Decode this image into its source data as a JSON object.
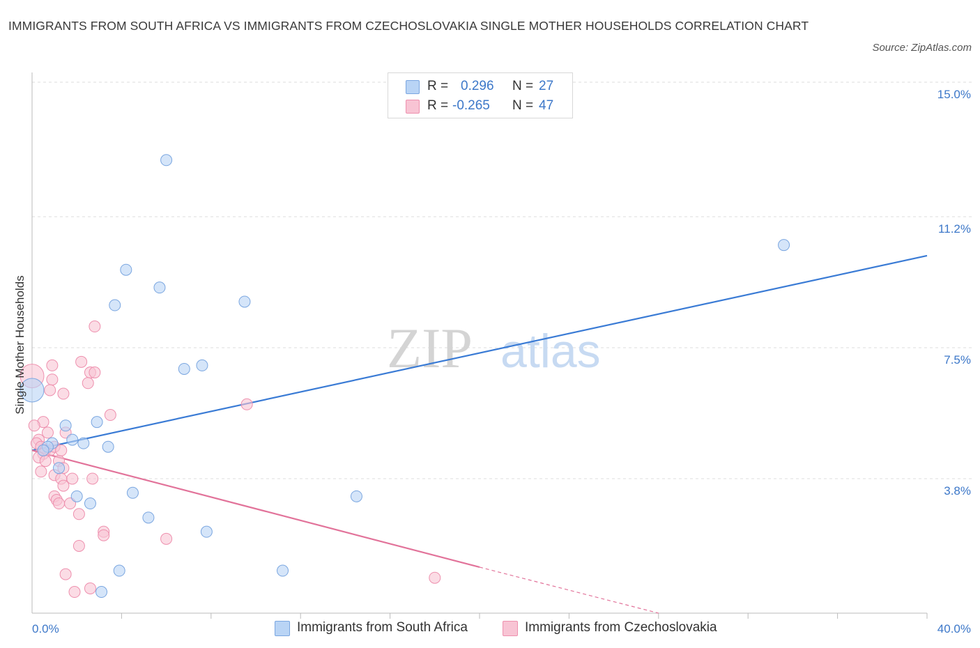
{
  "header": {
    "title": "IMMIGRANTS FROM SOUTH AFRICA VS IMMIGRANTS FROM CZECHOSLOVAKIA SINGLE MOTHER HOUSEHOLDS CORRELATION CHART",
    "source": "Source: ZipAtlas.com"
  },
  "legend": {
    "series1": {
      "r_label": "R =",
      "r_value": "0.296",
      "n_label": "N =",
      "n_value": "27"
    },
    "series2": {
      "r_label": "R =",
      "r_value": "-0.265",
      "n_label": "N =",
      "n_value": "47"
    }
  },
  "bottom_legend": {
    "series1": "Immigrants from South Africa",
    "series2": "Immigrants from Czechoslovakia"
  },
  "colors": {
    "blue_fill": "#b9d4f5",
    "blue_stroke": "#7aa6e0",
    "blue_line": "#3a7bd5",
    "pink_fill": "#f8c4d4",
    "pink_stroke": "#ee90ae",
    "pink_line": "#e2739a",
    "axis_text": "#3d78c9",
    "grid": "#dddddd"
  },
  "watermark": {
    "zip": "ZIP",
    "atlas": "atlas"
  },
  "chart_data": {
    "type": "scatter",
    "title": "IMMIGRANTS FROM SOUTH AFRICA VS IMMIGRANTS FROM CZECHOSLOVAKIA SINGLE MOTHER HOUSEHOLDS CORRELATION CHART",
    "xlabel": "",
    "ylabel": "Single Mother Households",
    "xlim": [
      0,
      40
    ],
    "ylim": [
      0,
      15
    ],
    "x_tick_labels": [
      "0.0%",
      "40.0%"
    ],
    "y_ticks": [
      3.8,
      7.5,
      11.2,
      15.0
    ],
    "y_tick_labels": [
      "3.8%",
      "7.5%",
      "11.2%",
      "15.0%"
    ],
    "grid": true,
    "legend_position": "top-center",
    "series": [
      {
        "name": "Immigrants from South Africa",
        "R": 0.296,
        "N": 27,
        "trend": {
          "x": [
            0,
            40
          ],
          "y": [
            4.6,
            10.1
          ]
        },
        "points": [
          {
            "x": 0.0,
            "y": 6.3,
            "big": true
          },
          {
            "x": 6.0,
            "y": 12.8
          },
          {
            "x": 33.6,
            "y": 10.4
          },
          {
            "x": 4.2,
            "y": 9.7
          },
          {
            "x": 5.7,
            "y": 9.2
          },
          {
            "x": 9.5,
            "y": 8.8
          },
          {
            "x": 3.7,
            "y": 8.7
          },
          {
            "x": 7.6,
            "y": 7.0
          },
          {
            "x": 6.8,
            "y": 6.9
          },
          {
            "x": 1.5,
            "y": 5.3
          },
          {
            "x": 2.9,
            "y": 5.4
          },
          {
            "x": 1.8,
            "y": 4.9
          },
          {
            "x": 2.3,
            "y": 4.8
          },
          {
            "x": 0.9,
            "y": 4.8
          },
          {
            "x": 0.7,
            "y": 4.7
          },
          {
            "x": 3.4,
            "y": 4.7
          },
          {
            "x": 1.2,
            "y": 4.1
          },
          {
            "x": 4.5,
            "y": 3.4
          },
          {
            "x": 2.0,
            "y": 3.3
          },
          {
            "x": 2.6,
            "y": 3.1
          },
          {
            "x": 14.5,
            "y": 3.3
          },
          {
            "x": 5.2,
            "y": 2.7
          },
          {
            "x": 7.8,
            "y": 2.3
          },
          {
            "x": 3.9,
            "y": 1.2
          },
          {
            "x": 11.2,
            "y": 1.2
          },
          {
            "x": 3.1,
            "y": 0.6
          },
          {
            "x": 0.5,
            "y": 4.6
          }
        ]
      },
      {
        "name": "Immigrants from Czechoslovakia",
        "R": -0.265,
        "N": 47,
        "trend": {
          "x": [
            0,
            20
          ],
          "y": [
            4.6,
            1.3
          ]
        },
        "trend_dashed": {
          "x": [
            20,
            28
          ],
          "y": [
            1.3,
            0.0
          ]
        },
        "points": [
          {
            "x": 0.0,
            "y": 6.7,
            "big": true
          },
          {
            "x": 2.8,
            "y": 8.1
          },
          {
            "x": 0.9,
            "y": 7.0
          },
          {
            "x": 2.2,
            "y": 7.1
          },
          {
            "x": 2.6,
            "y": 6.8
          },
          {
            "x": 2.8,
            "y": 6.8
          },
          {
            "x": 0.9,
            "y": 6.6
          },
          {
            "x": 2.5,
            "y": 6.5
          },
          {
            "x": 0.8,
            "y": 6.3
          },
          {
            "x": 1.4,
            "y": 6.2
          },
          {
            "x": 9.6,
            "y": 5.9
          },
          {
            "x": 3.5,
            "y": 5.6
          },
          {
            "x": 0.5,
            "y": 5.4
          },
          {
            "x": 0.1,
            "y": 5.3
          },
          {
            "x": 1.5,
            "y": 5.1
          },
          {
            "x": 0.7,
            "y": 5.1
          },
          {
            "x": 0.3,
            "y": 4.9
          },
          {
            "x": 0.2,
            "y": 4.8
          },
          {
            "x": 0.4,
            "y": 4.7
          },
          {
            "x": 0.6,
            "y": 4.6
          },
          {
            "x": 0.8,
            "y": 4.6
          },
          {
            "x": 1.0,
            "y": 4.7
          },
          {
            "x": 0.5,
            "y": 4.5
          },
          {
            "x": 0.3,
            "y": 4.4
          },
          {
            "x": 0.6,
            "y": 4.3
          },
          {
            "x": 1.2,
            "y": 4.3
          },
          {
            "x": 1.4,
            "y": 4.1
          },
          {
            "x": 0.4,
            "y": 4.0
          },
          {
            "x": 1.0,
            "y": 3.9
          },
          {
            "x": 1.3,
            "y": 3.8
          },
          {
            "x": 1.8,
            "y": 3.8
          },
          {
            "x": 2.7,
            "y": 3.8
          },
          {
            "x": 1.4,
            "y": 3.6
          },
          {
            "x": 1.0,
            "y": 3.3
          },
          {
            "x": 1.1,
            "y": 3.2
          },
          {
            "x": 1.2,
            "y": 3.1
          },
          {
            "x": 1.7,
            "y": 3.1
          },
          {
            "x": 2.1,
            "y": 2.8
          },
          {
            "x": 3.2,
            "y": 2.3
          },
          {
            "x": 3.2,
            "y": 2.2
          },
          {
            "x": 6.0,
            "y": 2.1
          },
          {
            "x": 2.1,
            "y": 1.9
          },
          {
            "x": 1.5,
            "y": 1.1
          },
          {
            "x": 18.0,
            "y": 1.0
          },
          {
            "x": 2.6,
            "y": 0.7
          },
          {
            "x": 1.9,
            "y": 0.6
          },
          {
            "x": 1.3,
            "y": 4.6
          }
        ]
      }
    ]
  }
}
